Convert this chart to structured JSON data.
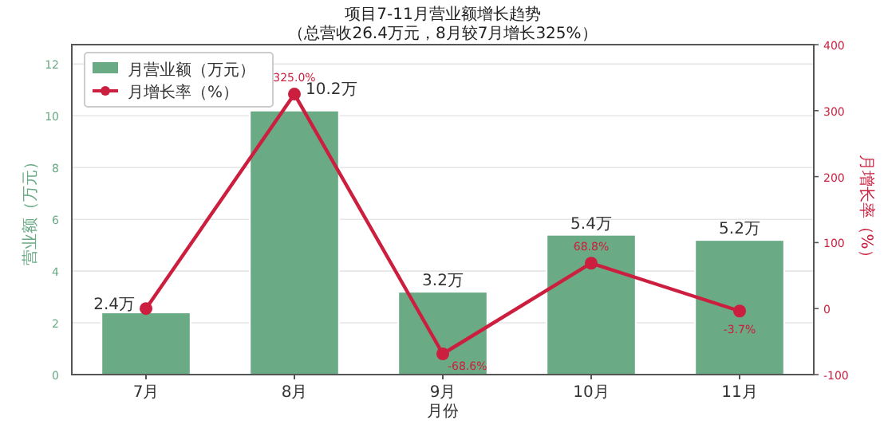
{
  "chart_data": {
    "type": "bar",
    "title": "项目7-11月营业额增长趋势",
    "subtitle": "（总营收26.4万元，8月较7月增长325%）",
    "xlabel": "月份",
    "ylabel": "营业额（万元）",
    "y2label": "月增长率（%）",
    "categories": [
      "7月",
      "8月",
      "9月",
      "10月",
      "11月"
    ],
    "series": [
      {
        "name": "月营业额（万元）",
        "color": "#6aaa84",
        "values": [
          2.4,
          10.2,
          3.2,
          5.4,
          5.2
        ],
        "value_labels": [
          "2.4万",
          "10.2万",
          "3.2万",
          "5.4万",
          "5.2万"
        ]
      },
      {
        "type": "line",
        "name": "月增长率（%）",
        "color": "#cc1f3f",
        "axis": "y2",
        "marker": "circle",
        "values": [
          0,
          325.0,
          -68.6,
          68.8,
          -3.7
        ],
        "value_labels": [
          null,
          "325.0%",
          "-68.6%",
          "68.8%",
          "-3.7%"
        ]
      }
    ],
    "ylim": [
      0,
      12.75
    ],
    "yticks": [
      0,
      2,
      4,
      6,
      8,
      10,
      12
    ],
    "y2lim": [
      -100,
      400
    ],
    "y2ticks": [
      -100,
      0,
      100,
      200,
      300,
      400
    ],
    "grid": "y",
    "legend": "top left"
  }
}
